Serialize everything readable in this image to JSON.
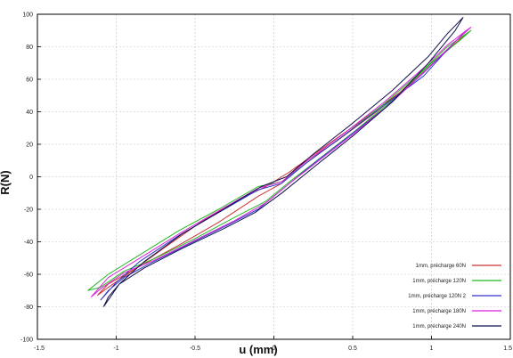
{
  "chart_data": {
    "type": "line",
    "title": "",
    "xlabel": "u (mm)",
    "ylabel": "R(N)",
    "xlim": [
      -1.5,
      1.5
    ],
    "ylim": [
      -100,
      100
    ],
    "xticks": [
      "-1.5",
      "-1",
      "-0.5",
      "0",
      "0.5",
      "1",
      "1.5"
    ],
    "yticks": [
      "100",
      "80",
      "60",
      "40",
      "20",
      "0",
      "-20",
      "-40",
      "-60",
      "-80",
      "-100"
    ],
    "grid": true,
    "legend_position": "bottom-right",
    "series": [
      {
        "name": "1mm, précharge 60N",
        "color": "#cc3333",
        "x": [
          -1.12,
          -1.05,
          -0.85,
          -0.6,
          -0.35,
          -0.1,
          0.05,
          0.15,
          0.4,
          0.65,
          0.9,
          1.08,
          1.2,
          1.22,
          1.15,
          1.0,
          0.8,
          0.55,
          0.3,
          0.1,
          -0.05,
          -0.2,
          -0.45,
          -0.7,
          -0.9,
          -1.05,
          -1.12
        ],
        "y": [
          -73,
          -66,
          -55,
          -42,
          -28,
          -12,
          -4,
          6,
          22,
          40,
          60,
          76,
          86,
          88,
          82,
          70,
          52,
          34,
          17,
          3,
          -6,
          -13,
          -27,
          -44,
          -58,
          -68,
          -73
        ]
      },
      {
        "name": "1mm, précharge 120N",
        "color": "#22bb22",
        "x": [
          -1.18,
          -1.05,
          -0.85,
          -0.6,
          -0.35,
          -0.1,
          0.05,
          0.2,
          0.45,
          0.7,
          0.95,
          1.1,
          1.22,
          1.25,
          1.18,
          1.0,
          0.75,
          0.5,
          0.3,
          0.1,
          -0.05,
          -0.25,
          -0.5,
          -0.75,
          -0.95,
          -1.1,
          -1.18
        ],
        "y": [
          -70,
          -60,
          -48,
          -33,
          -20,
          -6,
          -3,
          8,
          26,
          45,
          66,
          80,
          88,
          90,
          84,
          70,
          47,
          27,
          12,
          -3,
          -15,
          -25,
          -38,
          -50,
          -58,
          -68,
          -70
        ]
      },
      {
        "name": "1mm, précharge 120N 2",
        "color": "#3333cc",
        "x": [
          -1.1,
          -1.0,
          -0.85,
          -0.6,
          -0.35,
          -0.1,
          0.05,
          0.2,
          0.45,
          0.7,
          0.95,
          1.08,
          1.18,
          1.2,
          1.12,
          0.95,
          0.7,
          0.45,
          0.25,
          0.05,
          -0.1,
          -0.3,
          -0.55,
          -0.8,
          -0.95,
          -1.05,
          -1.1
        ],
        "y": [
          -76,
          -65,
          -52,
          -36,
          -22,
          -8,
          -4,
          8,
          26,
          44,
          62,
          76,
          86,
          88,
          80,
          64,
          42,
          23,
          8,
          -8,
          -20,
          -30,
          -42,
          -54,
          -62,
          -70,
          -76
        ]
      },
      {
        "name": "1mm, précharge 180N",
        "color": "#dd22dd",
        "x": [
          -1.16,
          -1.05,
          -0.85,
          -0.6,
          -0.35,
          -0.1,
          0.05,
          0.2,
          0.45,
          0.7,
          0.95,
          1.1,
          1.22,
          1.25,
          1.17,
          1.0,
          0.75,
          0.5,
          0.3,
          0.1,
          -0.05,
          -0.25,
          -0.5,
          -0.75,
          -0.95,
          -1.1,
          -1.16
        ],
        "y": [
          -74,
          -62,
          -50,
          -35,
          -21,
          -7,
          -3,
          9,
          27,
          46,
          67,
          81,
          90,
          92,
          85,
          69,
          46,
          26,
          11,
          -4,
          -16,
          -27,
          -39,
          -51,
          -59,
          -69,
          -74
        ]
      },
      {
        "name": "1mm, précharge 240N",
        "color": "#11114d",
        "x": [
          -1.08,
          -0.98,
          -0.82,
          -0.58,
          -0.32,
          -0.08,
          0.08,
          0.25,
          0.5,
          0.75,
          0.98,
          1.1,
          1.18,
          1.2,
          1.15,
          0.98,
          0.75,
          0.5,
          0.28,
          0.05,
          -0.12,
          -0.32,
          -0.58,
          -0.82,
          -0.98,
          -1.05,
          -1.08
        ],
        "y": [
          -80,
          -66,
          -52,
          -35,
          -20,
          -6,
          0,
          14,
          33,
          53,
          74,
          88,
          96,
          98,
          90,
          70,
          46,
          25,
          8,
          -10,
          -22,
          -32,
          -44,
          -56,
          -66,
          -74,
          -80
        ]
      }
    ]
  }
}
